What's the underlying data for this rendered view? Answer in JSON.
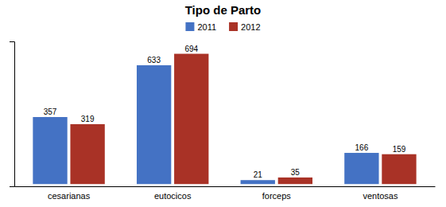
{
  "chart_data": {
    "type": "bar",
    "title": "Tipo de Parto",
    "categories": [
      "cesarianas",
      "eutocicos",
      "forceps",
      "ventosas"
    ],
    "series": [
      {
        "name": "2011",
        "color": "#4472C4",
        "values": [
          357,
          633,
          21,
          166
        ]
      },
      {
        "name": "2012",
        "color": "#A93226",
        "values": [
          319,
          694,
          35,
          159
        ]
      }
    ],
    "ylim": [
      -12,
      760
    ],
    "yticks": [],
    "grid": false,
    "legend": "top",
    "data_labels": true,
    "tick_labels": "x"
  }
}
